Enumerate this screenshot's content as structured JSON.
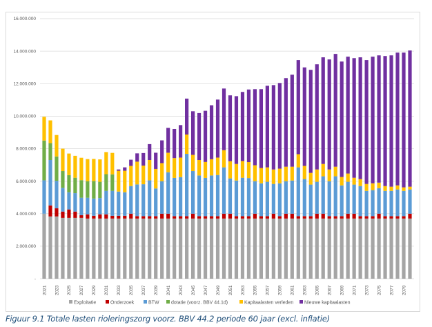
{
  "caption": "Figuur 9.1 Totale lasten rioleringszorg voorz. BBV 44.2 periode 60 jaar (excl. inflatie)",
  "chart_data": {
    "type": "bar",
    "stacked": true,
    "title": "",
    "xlabel": "",
    "ylabel": "",
    "ylim": [
      0,
      16000000
    ],
    "yticks": [
      0,
      2000000,
      4000000,
      6000000,
      8000000,
      10000000,
      12000000,
      14000000,
      16000000
    ],
    "ytick_labels": [
      "-",
      "2.000.000",
      "4.000.000",
      "6.000.000",
      "8.000.000",
      "10.000.000",
      "12.000.000",
      "14.000.000",
      "16.000.000"
    ],
    "grid": true,
    "legend_position": "bottom",
    "categories": [
      2021,
      2022,
      2023,
      2024,
      2025,
      2026,
      2027,
      2028,
      2029,
      2030,
      2031,
      2032,
      2033,
      2034,
      2035,
      2036,
      2037,
      2038,
      2039,
      2040,
      2041,
      2042,
      2043,
      2044,
      2045,
      2046,
      2047,
      2048,
      2049,
      2050,
      2051,
      2052,
      2053,
      2054,
      2055,
      2056,
      2057,
      2058,
      2059,
      2060,
      2061,
      2062,
      2063,
      2064,
      2065,
      2066,
      2067,
      2068,
      2069,
      2070,
      2071,
      2072,
      2073,
      2074,
      2075,
      2076,
      2077,
      2078,
      2079,
      2080
    ],
    "xtick_labels": [
      "2021",
      "2023",
      "2025",
      "2027",
      "2029",
      "2031",
      "2033",
      "2035",
      "2037",
      "2039",
      "2041",
      "2043",
      "2045",
      "2047",
      "2049",
      "2051",
      "2053",
      "2055",
      "2057",
      "2059",
      "2061",
      "2063",
      "2065",
      "2067",
      "2069",
      "2071",
      "2073",
      "2075",
      "2077",
      "2079"
    ],
    "series": [
      {
        "name": "Exploitatie",
        "color": "#a5a5a5",
        "values": [
          4000000,
          3830000,
          3830000,
          3740000,
          3740000,
          3740000,
          3740000,
          3700000,
          3700000,
          3700000,
          3700000,
          3700000,
          3700000,
          3700000,
          3700000,
          3700000,
          3700000,
          3700000,
          3700000,
          3700000,
          3700000,
          3700000,
          3700000,
          3700000,
          3700000,
          3700000,
          3700000,
          3700000,
          3700000,
          3700000,
          3700000,
          3700000,
          3700000,
          3700000,
          3700000,
          3700000,
          3700000,
          3700000,
          3700000,
          3700000,
          3700000,
          3700000,
          3700000,
          3700000,
          3700000,
          3700000,
          3700000,
          3700000,
          3700000,
          3700000,
          3700000,
          3700000,
          3700000,
          3700000,
          3700000,
          3700000,
          3700000,
          3700000,
          3700000,
          3700000
        ]
      },
      {
        "name": "Onderzoek",
        "color": "#c00000",
        "values": [
          0,
          680000,
          510000,
          390000,
          520000,
          390000,
          170000,
          260000,
          170000,
          260000,
          260000,
          170000,
          170000,
          170000,
          300000,
          150000,
          150000,
          150000,
          150000,
          300000,
          300000,
          150000,
          150000,
          150000,
          300000,
          150000,
          150000,
          150000,
          150000,
          300000,
          300000,
          150000,
          150000,
          150000,
          300000,
          150000,
          150000,
          300000,
          150000,
          300000,
          300000,
          150000,
          150000,
          150000,
          300000,
          300000,
          150000,
          150000,
          150000,
          300000,
          300000,
          150000,
          150000,
          150000,
          300000,
          150000,
          150000,
          150000,
          150000,
          300000
        ]
      },
      {
        "name": "BTW",
        "color": "#5b9bd5",
        "values": [
          2050000,
          2790000,
          1680000,
          1460000,
          1060000,
          1130000,
          1070000,
          1020000,
          1060000,
          1000000,
          1440000,
          1530000,
          1490000,
          1450000,
          1700000,
          1950000,
          1960000,
          2200000,
          1700000,
          2000000,
          2550000,
          2350000,
          2400000,
          3830000,
          2620000,
          2500000,
          2350000,
          2500000,
          2530000,
          2850000,
          2170000,
          2190000,
          2360000,
          2340000,
          2000000,
          2020000,
          2110000,
          1830000,
          2020000,
          2000000,
          2040000,
          3000000,
          2280000,
          1940000,
          1960000,
          2300000,
          2150000,
          2450000,
          1890000,
          1960000,
          1790000,
          1850000,
          1550000,
          1600000,
          1570000,
          1550000,
          1550000,
          1640000,
          1550000,
          1490000
        ]
      },
      {
        "name": "dotatie (voorz. BBV 44.1d)",
        "color": "#70ad47",
        "values": [
          2450000,
          1040000,
          1500000,
          1030000,
          1050000,
          950000,
          1080000,
          1020000,
          1080000,
          1000000,
          1030000,
          1020000,
          0,
          0,
          0,
          0,
          0,
          0,
          0,
          0,
          0,
          0,
          0,
          0,
          0,
          0,
          0,
          0,
          0,
          0,
          0,
          0,
          0,
          0,
          0,
          0,
          0,
          0,
          0,
          0,
          0,
          0,
          0,
          0,
          0,
          0,
          0,
          0,
          0,
          0,
          0,
          0,
          0,
          0,
          0,
          0,
          0,
          0,
          0,
          0
        ]
      },
      {
        "name": "Kapitaalasten verleden",
        "color": "#ffc000",
        "values": [
          1460000,
          1400000,
          1320000,
          1380000,
          1330000,
          1350000,
          1380000,
          1360000,
          1360000,
          1380000,
          1360000,
          1320000,
          1280000,
          1320000,
          1240000,
          1400000,
          1150000,
          1250000,
          1200000,
          1110000,
          1200000,
          1220000,
          1200000,
          1190000,
          1000000,
          950000,
          980000,
          1000000,
          1070000,
          1060000,
          1060000,
          1020000,
          1030000,
          980000,
          980000,
          940000,
          890000,
          890000,
          900000,
          890000,
          850000,
          810000,
          810000,
          720000,
          760000,
          760000,
          720000,
          590000,
          520000,
          510000,
          420000,
          430000,
          430000,
          420000,
          340000,
          300000,
          260000,
          250000,
          220000,
          170000
        ]
      },
      {
        "name": "Nieuwe kapitaalasten",
        "color": "#7030a0",
        "values": [
          0,
          0,
          0,
          0,
          0,
          0,
          0,
          0,
          0,
          0,
          0,
          0,
          80000,
          210000,
          380000,
          510000,
          770000,
          980000,
          1000000,
          1400000,
          1530000,
          1790000,
          2000000,
          2210000,
          2680000,
          2890000,
          3150000,
          3320000,
          3570000,
          3790000,
          4050000,
          4170000,
          4250000,
          4470000,
          4680000,
          4850000,
          5020000,
          5190000,
          5270000,
          5450000,
          5660000,
          5790000,
          6060000,
          6340000,
          6470000,
          6560000,
          6770000,
          6940000,
          7100000,
          7190000,
          7360000,
          7490000,
          7620000,
          7790000,
          7830000,
          8000000,
          8080000,
          8170000,
          8290000,
          8380000
        ]
      }
    ]
  }
}
